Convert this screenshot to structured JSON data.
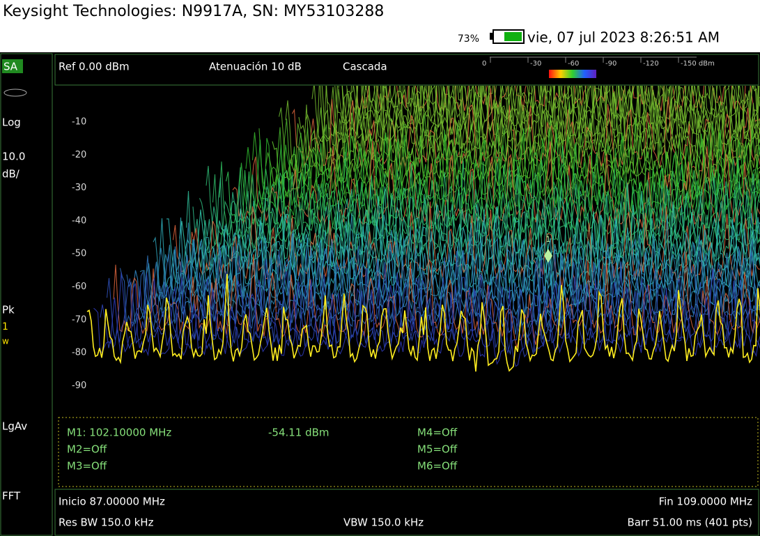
{
  "header": {
    "title": "Keysight Technologies: N9917A, SN: MY53103288",
    "battery": "73%",
    "datetime": "vie, 07 jul 2023 8:26:51 AM"
  },
  "sidebar": {
    "mode": "SA",
    "scale_type": "Log",
    "scale_value": "10.0",
    "scale_unit": "dB/",
    "detector": "Pk",
    "trace": "1",
    "trace_mode": "w",
    "average": "LgAv",
    "sweep_type": "FFT"
  },
  "top_bar": {
    "ref": "Ref 0.00 dBm",
    "attenuation": "Atenuación 10 dB",
    "view": "Cascada",
    "scale_labels": [
      "0",
      "-30",
      "-60",
      "-90",
      "-120",
      "-150 dBm"
    ]
  },
  "y_labels": [
    "-10",
    "-20",
    "-30",
    "-40",
    "-50",
    "-60",
    "-70",
    "-80",
    "-90"
  ],
  "marker_flag": "1",
  "markers": {
    "m1": "M1:  102.10000 MHz",
    "m1_value": "-54.11 dBm",
    "m2": "M2=Off",
    "m3": "M3=Off",
    "m4": "M4=Off",
    "m5": "M5=Off",
    "m6": "M6=Off"
  },
  "footer": {
    "start": "Inicio 87.00000 MHz",
    "stop": "Fin 109.0000 MHz",
    "rbw": "Res BW 150.0 kHz",
    "vbw": "VBW 150.0 kHz",
    "sweep": "Barr 51.00 ms (401 pts)"
  }
}
